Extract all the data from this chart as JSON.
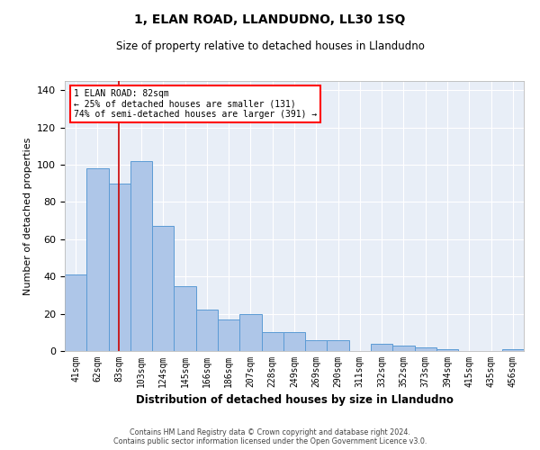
{
  "title": "1, ELAN ROAD, LLANDUDNO, LL30 1SQ",
  "subtitle": "Size of property relative to detached houses in Llandudno",
  "xlabel": "Distribution of detached houses by size in Llandudno",
  "ylabel": "Number of detached properties",
  "categories": [
    "41sqm",
    "62sqm",
    "83sqm",
    "103sqm",
    "124sqm",
    "145sqm",
    "166sqm",
    "186sqm",
    "207sqm",
    "228sqm",
    "249sqm",
    "269sqm",
    "290sqm",
    "311sqm",
    "332sqm",
    "352sqm",
    "373sqm",
    "394sqm",
    "415sqm",
    "435sqm",
    "456sqm"
  ],
  "values": [
    41,
    98,
    90,
    102,
    67,
    35,
    22,
    17,
    20,
    10,
    10,
    6,
    6,
    0,
    4,
    3,
    2,
    1,
    0,
    0,
    1
  ],
  "bar_color": "#aec6e8",
  "bar_edge_color": "#5b9bd5",
  "background_color": "#e8eef7",
  "grid_color": "#ffffff",
  "annotation_line1": "1 ELAN ROAD: 82sqm",
  "annotation_line2": "← 25% of detached houses are smaller (131)",
  "annotation_line3": "74% of semi-detached houses are larger (391) →",
  "red_line_color": "#cc0000",
  "ylim": [
    0,
    145
  ],
  "yticks": [
    0,
    20,
    40,
    60,
    80,
    100,
    120,
    140
  ],
  "footer_line1": "Contains HM Land Registry data © Crown copyright and database right 2024.",
  "footer_line2": "Contains public sector information licensed under the Open Government Licence v3.0."
}
